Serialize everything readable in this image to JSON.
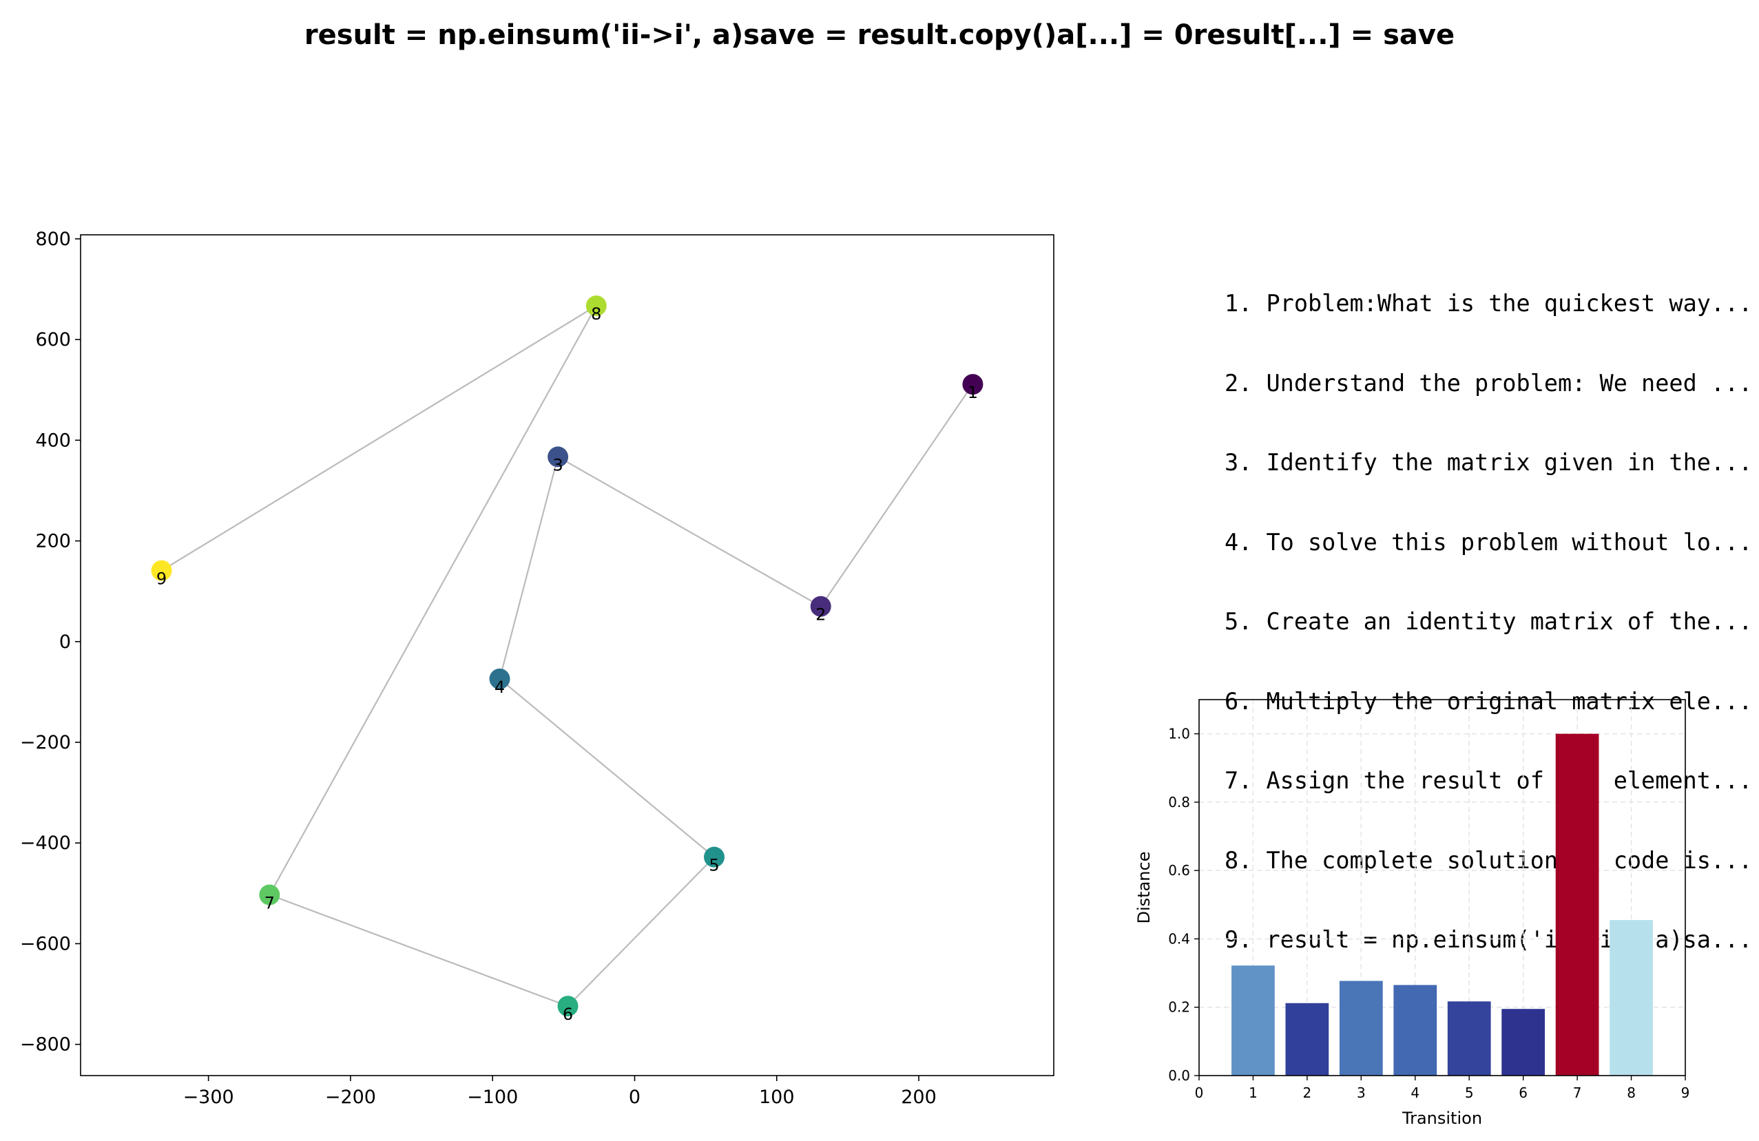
{
  "title": "result = np.einsum('ii->i', a)save = result.copy()a[...] = 0result[...] = save",
  "steps": [
    "1. Problem:What is the quickest way...",
    "2. Understand the problem: We need ...",
    "3. Identify the matrix given in the...",
    "4. To solve this problem without lo...",
    "5. Create an identity matrix of the...",
    "6. Multiply the original matrix ele...",
    "7. Assign the result of the element...",
    "8. The complete solution in code is...",
    "9. result = np.einsum('ii->i', a)sa..."
  ],
  "chart_data": [
    {
      "type": "scatter",
      "title": "",
      "xlabel": "",
      "ylabel": "",
      "xlim": [
        -390,
        295
      ],
      "ylim": [
        -862,
        808
      ],
      "xticks": [
        -300,
        -200,
        -100,
        0,
        100,
        200
      ],
      "yticks": [
        -800,
        -600,
        -400,
        -200,
        0,
        200,
        400,
        600,
        800
      ],
      "grid": false,
      "connected": true,
      "line_color": "#bbbbbb",
      "points": [
        {
          "label": "1",
          "x": 238,
          "y": 511,
          "color": "#440154"
        },
        {
          "label": "2",
          "x": 131,
          "y": 70,
          "color": "#472d7b"
        },
        {
          "label": "3",
          "x": -54,
          "y": 367,
          "color": "#3b528b"
        },
        {
          "label": "4",
          "x": -95,
          "y": -74,
          "color": "#2c728e"
        },
        {
          "label": "5",
          "x": 56,
          "y": -428,
          "color": "#21918c"
        },
        {
          "label": "6",
          "x": -47,
          "y": -724,
          "color": "#28ae80"
        },
        {
          "label": "7",
          "x": -257,
          "y": -503,
          "color": "#5ec962"
        },
        {
          "label": "8",
          "x": -27,
          "y": 667,
          "color": "#addc30"
        },
        {
          "label": "9",
          "x": -333,
          "y": 141,
          "color": "#fde725"
        }
      ]
    },
    {
      "type": "bar",
      "title": "",
      "xlabel": "Transition",
      "ylabel": "Distance",
      "xlim": [
        0,
        9
      ],
      "ylim": [
        0,
        1.1
      ],
      "xticks": [
        0,
        1,
        2,
        3,
        4,
        5,
        6,
        7,
        8,
        9
      ],
      "yticks": [
        "0.0",
        "0.2",
        "0.4",
        "0.6",
        "0.8",
        "1.0"
      ],
      "grid": true,
      "categories": [
        "1",
        "2",
        "3",
        "4",
        "5",
        "6",
        "7",
        "8"
      ],
      "values": [
        0.322,
        0.212,
        0.277,
        0.265,
        0.217,
        0.195,
        1.0,
        0.455
      ],
      "colors": [
        "#6193c6",
        "#31409a",
        "#4a76b8",
        "#4269b2",
        "#34439b",
        "#2e3390",
        "#a50026",
        "#b6e0ec"
      ]
    }
  ]
}
